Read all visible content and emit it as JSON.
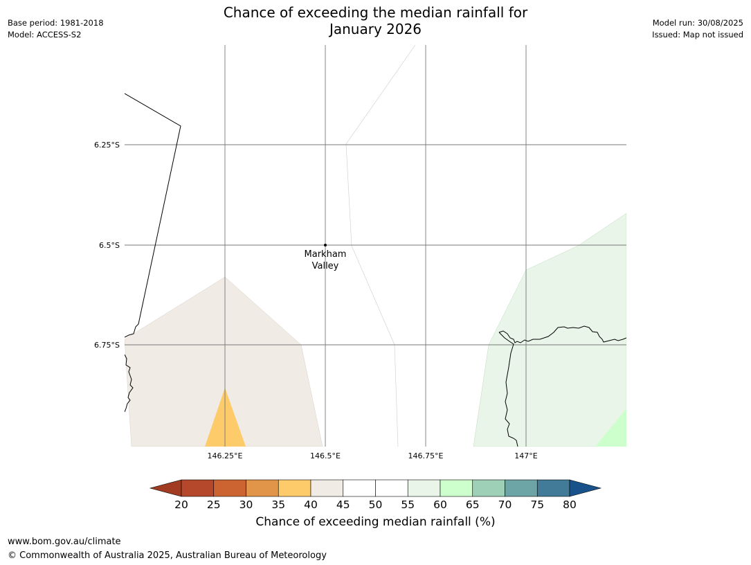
{
  "header": {
    "title_line1": "Chance of exceeding the median rainfall for",
    "title_line2": "January 2026",
    "base_period": "Base period: 1981-2018",
    "model": "Model: ACCESS-S2",
    "model_run": "Model run: 30/08/2025",
    "issued": "Issued: Map not issued"
  },
  "map": {
    "lat_labels": [
      "6.25°S",
      "6.5°S",
      "6.75°S"
    ],
    "lon_labels": [
      "146.25°E",
      "146.5°E",
      "146.75°E",
      "147°E"
    ],
    "place": {
      "line1": "Markham",
      "line2": "Valley"
    },
    "region_colors": {
      "40-45": "#f0ebe5",
      "35-40": "#fdcb6a",
      "55-60": "#e9f5e9",
      "60-65": "#ccffcc"
    }
  },
  "colorbar": {
    "ticks": [
      "20",
      "25",
      "30",
      "35",
      "40",
      "45",
      "50",
      "55",
      "60",
      "65",
      "70",
      "75",
      "80"
    ],
    "colors": [
      "#a13c23",
      "#b5472a",
      "#cc6431",
      "#e19548",
      "#fdcb6a",
      "#f0ebe5",
      "#ffffff",
      "#ffffff",
      "#e9f5e9",
      "#ccffcc",
      "#9ecfb7",
      "#6da4a5",
      "#427b98",
      "#19528a"
    ],
    "label": "Chance of exceeding median rainfall (%)"
  },
  "footer": {
    "url": "www.bom.gov.au/climate",
    "copyright": "© Commonwealth of Australia 2025, Australian Bureau of Meteorology"
  }
}
